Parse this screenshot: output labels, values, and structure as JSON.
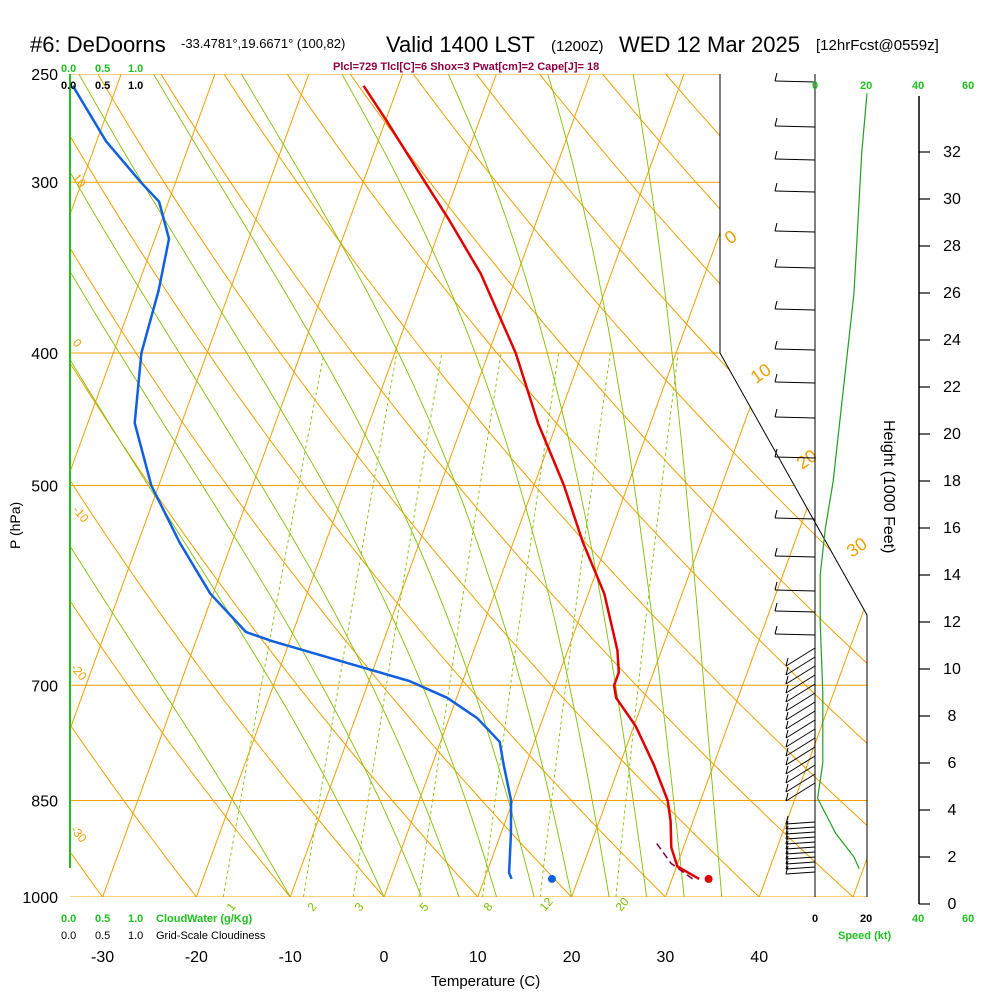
{
  "header": {
    "station": "#6: DeDoorns",
    "coords": "-33.4781°,19.6671° (100,82)",
    "valid": "Valid 1400 LST",
    "utc": "(1200Z)",
    "date": "WED 12 Mar 2025",
    "forecast": "[12hrFcst@0559z]",
    "indices": "Plcl=729 Tlcl[C]=6 Shox=3 Pwat[cm]=2 Cape[J]= 18"
  },
  "cloud_scale": {
    "top_green": [
      "0.0",
      "0.5",
      "1.0"
    ],
    "top_black": [
      "0.0",
      "0.5",
      "1.0"
    ],
    "bottom_green": [
      "0.0",
      "0.5",
      "1.0"
    ],
    "bottom_black": [
      "0.0",
      "0.5",
      "1.0"
    ],
    "cloudwater_label": "CloudWater (g/Kg)",
    "cloudiness_label": "Grid-Scale Cloudiness"
  },
  "speed_axis": {
    "ticks": [
      "0",
      "20",
      "40",
      "60"
    ],
    "label": "Speed (kt)"
  },
  "colors": {
    "isotherm": "#f0a000",
    "adiabat": "#80c000",
    "temperature": "#e00000",
    "dewpoint": "#1060e0",
    "parcel": "#800040",
    "speed": "#20a020",
    "indices": "#900040"
  },
  "chart_data": {
    "type": "skew-t",
    "xlabel": "Temperature (C)",
    "ylabel": "P (hPa)",
    "y2label": "Height (1000 Feet)",
    "x_ticks": [
      -30,
      -20,
      -10,
      0,
      10,
      20,
      30,
      40
    ],
    "pressure_ticks": [
      250,
      300,
      400,
      500,
      700,
      850,
      1000
    ],
    "height_ticks": [
      0,
      2,
      4,
      6,
      8,
      10,
      12,
      14,
      16,
      18,
      20,
      22,
      24,
      26,
      28,
      30,
      32
    ],
    "dry_adiabat_labels": [
      "0",
      "10",
      "20",
      "30"
    ],
    "dry_adiabat_left_labels": [
      "10",
      "0",
      "-10",
      "-20",
      "-30"
    ],
    "mixing_ratio_labels": [
      "1",
      "2",
      "3",
      "5",
      "8",
      "12",
      "20"
    ],
    "temperature_profile": [
      {
        "p": 970,
        "t": 32.9
      },
      {
        "p": 950,
        "t": 30.1
      },
      {
        "p": 920,
        "t": 28.7
      },
      {
        "p": 880,
        "t": 27.6
      },
      {
        "p": 850,
        "t": 26.5
      },
      {
        "p": 800,
        "t": 23.6
      },
      {
        "p": 750,
        "t": 20.2
      },
      {
        "p": 715,
        "t": 17.0
      },
      {
        "p": 700,
        "t": 16.3
      },
      {
        "p": 685,
        "t": 16.3
      },
      {
        "p": 660,
        "t": 15.3
      },
      {
        "p": 600,
        "t": 11.7
      },
      {
        "p": 550,
        "t": 7.4
      },
      {
        "p": 500,
        "t": 3.2
      },
      {
        "p": 450,
        "t": -2.0
      },
      {
        "p": 400,
        "t": -7.1
      },
      {
        "p": 350,
        "t": -13.9
      },
      {
        "p": 320,
        "t": -19.3
      },
      {
        "p": 300,
        "t": -23.4
      },
      {
        "p": 270,
        "t": -30.0
      },
      {
        "p": 255,
        "t": -33.7
      }
    ],
    "dewpoint_profile": [
      {
        "p": 970,
        "t": 12.9
      },
      {
        "p": 960,
        "t": 12.4
      },
      {
        "p": 900,
        "t": 11.1
      },
      {
        "p": 850,
        "t": 9.8
      },
      {
        "p": 800,
        "t": 7.6
      },
      {
        "p": 770,
        "t": 6.3
      },
      {
        "p": 740,
        "t": 3.0
      },
      {
        "p": 715,
        "t": -1.0
      },
      {
        "p": 695,
        "t": -5.7
      },
      {
        "p": 650,
        "t": -21.8
      },
      {
        "p": 640,
        "t": -25.0
      },
      {
        "p": 600,
        "t": -30.3
      },
      {
        "p": 550,
        "t": -35.6
      },
      {
        "p": 500,
        "t": -40.8
      },
      {
        "p": 450,
        "t": -45.0
      },
      {
        "p": 400,
        "t": -47.0
      },
      {
        "p": 360,
        "t": -47.6
      },
      {
        "p": 330,
        "t": -48.5
      },
      {
        "p": 310,
        "t": -51.0
      },
      {
        "p": 300,
        "t": -53.7
      },
      {
        "p": 280,
        "t": -59.0
      },
      {
        "p": 255,
        "t": -64.7
      }
    ],
    "parcel_profile": [
      {
        "p": 970,
        "t": 32.2
      },
      {
        "p": 945,
        "t": 29.3
      },
      {
        "p": 910,
        "t": 26.7
      }
    ],
    "surface_temperature": {
      "p": 970,
      "t": 33.9
    },
    "surface_dewpoint": {
      "p": 970,
      "t": 17.2
    },
    "wind_speed_profile": [
      {
        "h": 1.5,
        "v": 17
      },
      {
        "h": 2.0,
        "v": 15
      },
      {
        "h": 3.0,
        "v": 8
      },
      {
        "h": 4.5,
        "v": 1
      },
      {
        "h": 6.0,
        "v": 3
      },
      {
        "h": 7.0,
        "v": 3
      },
      {
        "h": 9.0,
        "v": 3
      },
      {
        "h": 12.0,
        "v": 2
      },
      {
        "h": 14.0,
        "v": 2
      },
      {
        "h": 16.0,
        "v": 4
      },
      {
        "h": 18.0,
        "v": 7
      },
      {
        "h": 20.0,
        "v": 9
      },
      {
        "h": 22.0,
        "v": 11
      },
      {
        "h": 24.0,
        "v": 13
      },
      {
        "h": 26.0,
        "v": 15
      },
      {
        "h": 28.0,
        "v": 16
      },
      {
        "h": 30.0,
        "v": 17
      },
      {
        "h": 32.0,
        "v": 18
      },
      {
        "h": 34.5,
        "v": 20
      }
    ]
  }
}
